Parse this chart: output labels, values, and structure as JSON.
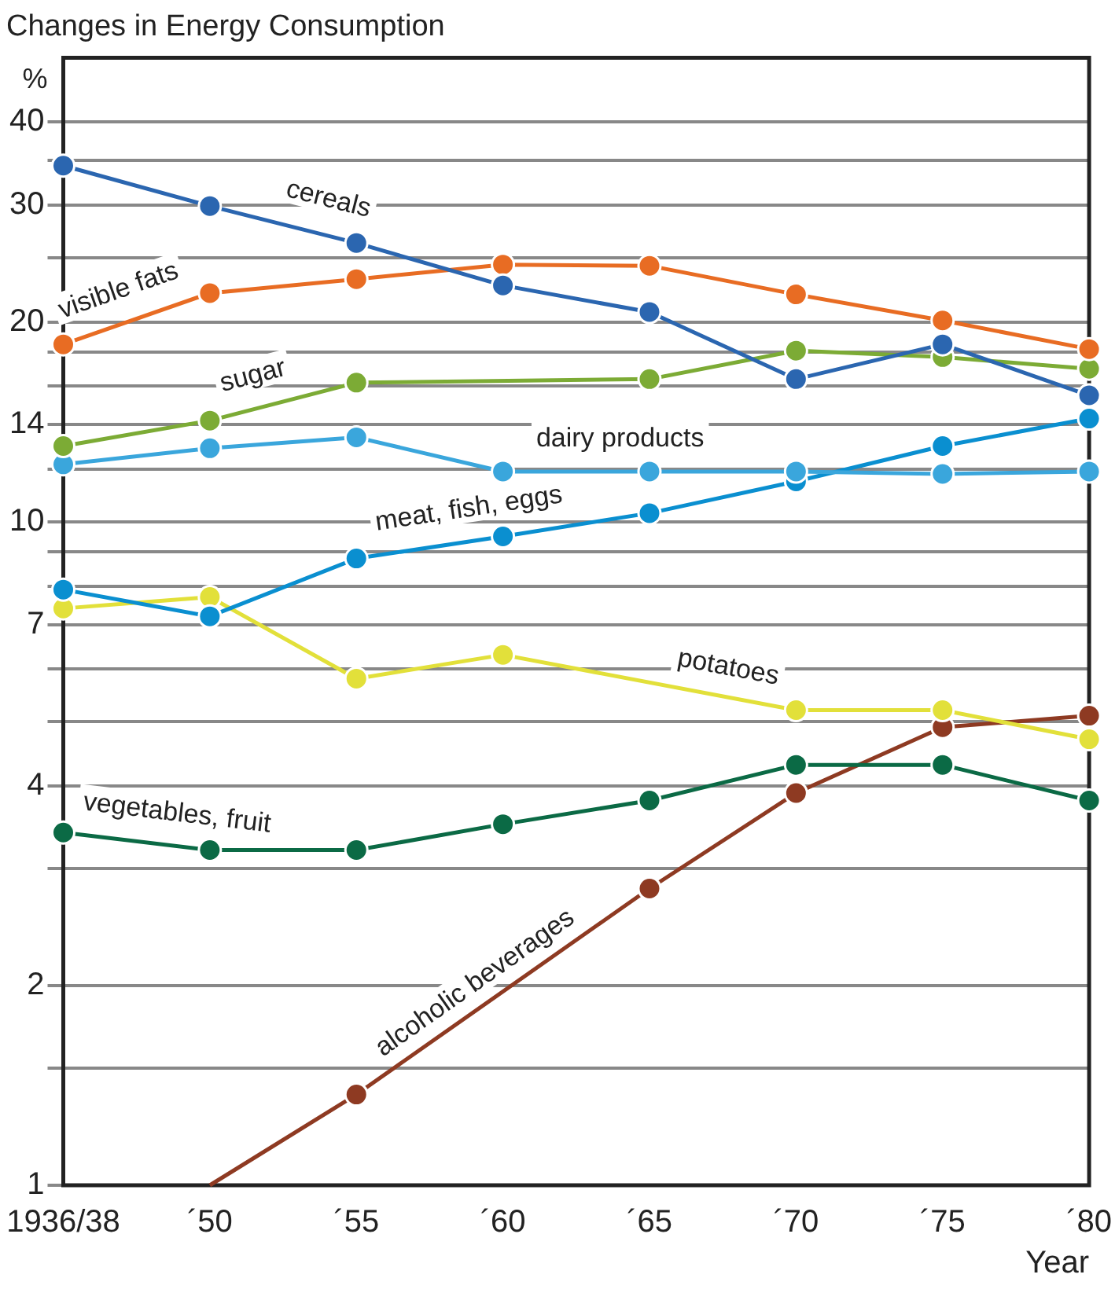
{
  "chart_data": {
    "type": "line",
    "title": "Changes in Energy Consumption",
    "ylabel": "%",
    "xlabel": "Year",
    "categories": [
      "1936/38",
      "´50",
      "´55",
      "´60",
      "´65",
      "´70",
      "´75",
      "´80"
    ],
    "series": [
      {
        "name": "cereals",
        "color": "#2b66b0",
        "values": [
          34.4,
          29.9,
          26.3,
          22.7,
          20.7,
          16.4,
          18.5,
          15.5
        ]
      },
      {
        "name": "visible fats",
        "color": "#e86c23",
        "values": [
          18.5,
          22.1,
          23.2,
          24.4,
          24.3,
          22.0,
          20.1,
          18.2
        ]
      },
      {
        "name": "sugar",
        "color": "#7cab35",
        "values": [
          13.0,
          14.2,
          16.2,
          null,
          16.4,
          18.1,
          17.7,
          17.0
        ]
      },
      {
        "name": "dairy products",
        "color": "#3aa6dc",
        "values": [
          12.2,
          12.9,
          13.4,
          11.9,
          11.9,
          11.9,
          11.8,
          11.9
        ]
      },
      {
        "name": "meat, fish, eggs",
        "color": "#0a8fd0",
        "values": [
          7.9,
          7.2,
          8.8,
          9.5,
          10.3,
          11.5,
          13.0,
          14.3
        ]
      },
      {
        "name": "potatoes",
        "color": "#e2e03a",
        "values": [
          7.4,
          7.7,
          5.8,
          6.3,
          null,
          5.2,
          5.2,
          4.7
        ]
      },
      {
        "name": "vegetables, fruit",
        "color": "#0b6a45",
        "values": [
          3.4,
          3.2,
          3.2,
          3.5,
          3.8,
          4.3,
          4.3,
          3.8
        ]
      },
      {
        "name": "alcoholic beverages",
        "color": "#8e3a22",
        "values": [
          null,
          1.0,
          1.37,
          null,
          2.8,
          3.9,
          4.9,
          5.1
        ]
      }
    ],
    "log": true,
    "ylim": [
      1,
      50
    ],
    "yticks": [
      1,
      {
        "value": 1.5,
        "label": null
      },
      2,
      {
        "value": 3,
        "label": null
      },
      4,
      {
        "value": 5,
        "label": null
      },
      {
        "value": 6,
        "label": null
      },
      7,
      {
        "value": 8,
        "label": null
      },
      {
        "value": 9,
        "label": null
      },
      10,
      {
        "value": 12,
        "label": null
      },
      14,
      {
        "value": 16,
        "label": null
      },
      {
        "value": 18,
        "label": null
      },
      20,
      {
        "value": 25,
        "label": null
      },
      30,
      {
        "value": 35,
        "label": null
      },
      40
    ],
    "grid": "y",
    "legend": false,
    "marker": "circle",
    "line_style": "solid"
  }
}
